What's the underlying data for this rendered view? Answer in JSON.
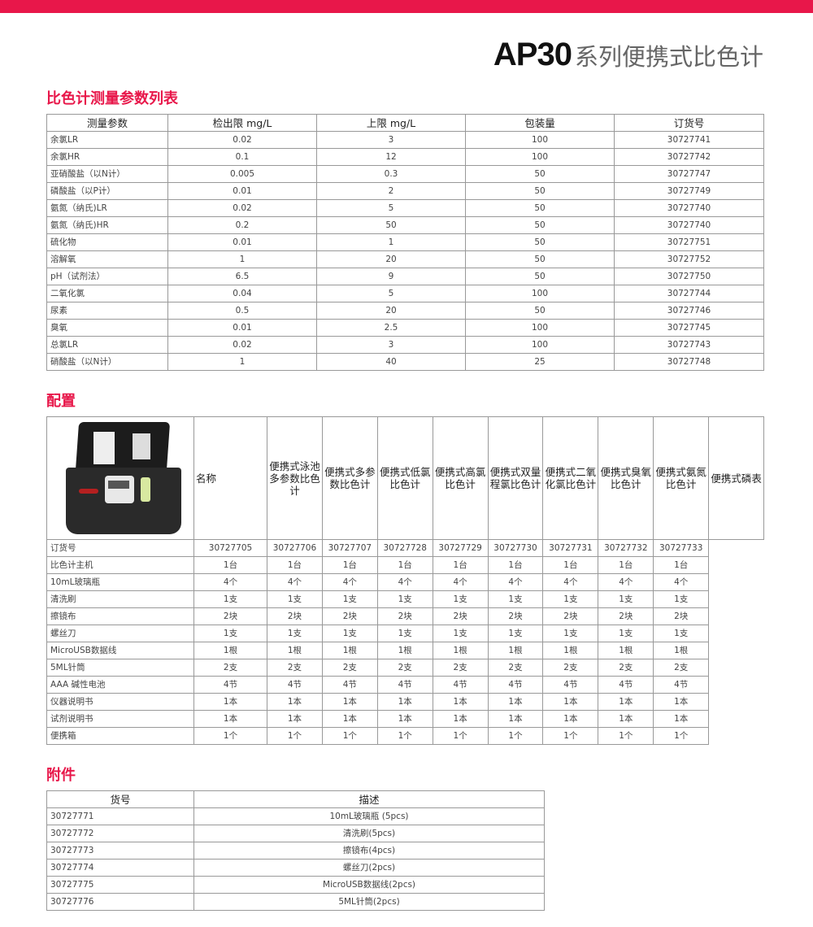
{
  "title": {
    "model": "AP30",
    "subtitle": "系列便携式比色计"
  },
  "params": {
    "heading": "比色计测量参数列表",
    "columns": [
      "测量参数",
      "检出限 mg/L",
      "上限 mg/L",
      "包装量",
      "订货号"
    ],
    "rows": [
      [
        "余氯LR",
        "0.02",
        "3",
        "100",
        "30727741"
      ],
      [
        "余氯HR",
        "0.1",
        "12",
        "100",
        "30727742"
      ],
      [
        "亚硝酸盐（以N计）",
        "0.005",
        "0.3",
        "50",
        "30727747"
      ],
      [
        "磷酸盐（以P计）",
        "0.01",
        "2",
        "50",
        "30727749"
      ],
      [
        "氨氮（纳氏)LR",
        "0.02",
        "5",
        "50",
        "30727740"
      ],
      [
        "氨氮（纳氏)HR",
        "0.2",
        "50",
        "50",
        "30727740"
      ],
      [
        "硫化物",
        "0.01",
        "1",
        "50",
        "30727751"
      ],
      [
        "溶解氧",
        "1",
        "20",
        "50",
        "30727752"
      ],
      [
        "pH（试剂法）",
        "6.5",
        "9",
        "50",
        "30727750"
      ],
      [
        "二氧化氯",
        "0.04",
        "5",
        "100",
        "30727744"
      ],
      [
        "尿素",
        "0.5",
        "20",
        "50",
        "30727746"
      ],
      [
        "臭氧",
        "0.01",
        "2.5",
        "100",
        "30727745"
      ],
      [
        "总氯LR",
        "0.02",
        "3",
        "100",
        "30727743"
      ],
      [
        "硝酸盐（以N计）",
        "1",
        "40",
        "25",
        "30727748"
      ]
    ]
  },
  "config": {
    "heading": "配置",
    "name_label": "名称",
    "models": [
      "便携式泳池多参数比色计",
      "便携式多参数比色计",
      "便携式低氯比色计",
      "便携式高氯比色计",
      "便携式双量程氯比色计",
      "便携式二氧化氯比色计",
      "便携式臭氧比色计",
      "便携式氨氮比色计",
      "便携式磷表"
    ],
    "rows": [
      {
        "label": "订货号",
        "values": [
          "30727705",
          "30727706",
          "30727707",
          "30727728",
          "30727729",
          "30727730",
          "30727731",
          "30727732",
          "30727733"
        ]
      },
      {
        "label": "比色计主机",
        "values": [
          "1台",
          "1台",
          "1台",
          "1台",
          "1台",
          "1台",
          "1台",
          "1台",
          "1台"
        ]
      },
      {
        "label": "10mL玻璃瓶",
        "values": [
          "4个",
          "4个",
          "4个",
          "4个",
          "4个",
          "4个",
          "4个",
          "4个",
          "4个"
        ]
      },
      {
        "label": "清洗刷",
        "values": [
          "1支",
          "1支",
          "1支",
          "1支",
          "1支",
          "1支",
          "1支",
          "1支",
          "1支"
        ]
      },
      {
        "label": "擦镜布",
        "values": [
          "2块",
          "2块",
          "2块",
          "2块",
          "2块",
          "2块",
          "2块",
          "2块",
          "2块"
        ]
      },
      {
        "label": "螺丝刀",
        "values": [
          "1支",
          "1支",
          "1支",
          "1支",
          "1支",
          "1支",
          "1支",
          "1支",
          "1支"
        ]
      },
      {
        "label": "MicroUSB数据线",
        "values": [
          "1根",
          "1根",
          "1根",
          "1根",
          "1根",
          "1根",
          "1根",
          "1根",
          "1根"
        ]
      },
      {
        "label": "5ML针筒",
        "values": [
          "2支",
          "2支",
          "2支",
          "2支",
          "2支",
          "2支",
          "2支",
          "2支",
          "2支"
        ]
      },
      {
        "label": "AAA 碱性电池",
        "values": [
          "4节",
          "4节",
          "4节",
          "4节",
          "4节",
          "4节",
          "4节",
          "4节",
          "4节"
        ]
      },
      {
        "label": "仪器说明书",
        "values": [
          "1本",
          "1本",
          "1本",
          "1本",
          "1本",
          "1本",
          "1本",
          "1本",
          "1本"
        ]
      },
      {
        "label": "试剂说明书",
        "values": [
          "1本",
          "1本",
          "1本",
          "1本",
          "1本",
          "1本",
          "1本",
          "1本",
          "1本"
        ]
      },
      {
        "label": "便携箱",
        "values": [
          "1个",
          "1个",
          "1个",
          "1个",
          "1个",
          "1个",
          "1个",
          "1个",
          "1个"
        ]
      }
    ]
  },
  "accessories": {
    "heading": "附件",
    "columns": [
      "货号",
      "描述"
    ],
    "rows": [
      [
        "30727771",
        "10mL玻璃瓶 (5pcs)"
      ],
      [
        "30727772",
        "清洗刷(5pcs)"
      ],
      [
        "30727773",
        "擦镜布(4pcs)"
      ],
      [
        "30727774",
        "螺丝刀(2pcs)"
      ],
      [
        "30727775",
        "MicroUSB数据线(2pcs)"
      ],
      [
        "30727776",
        "5ML针筒(2pcs)"
      ]
    ]
  },
  "colors": {
    "accent": "#e8174a"
  }
}
